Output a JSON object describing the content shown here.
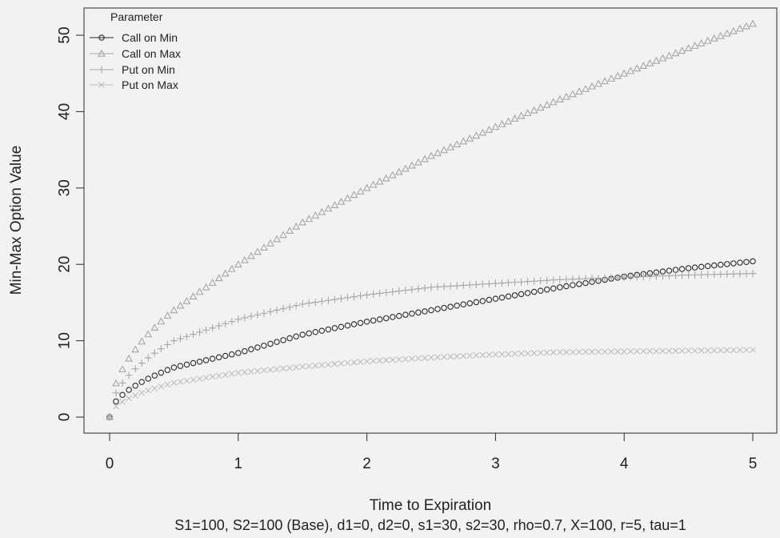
{
  "chart_data": {
    "type": "scatter",
    "xlabel": "Time to Expiration",
    "subtitle": "S1=100, S2=100 (Base), d1=0, d2=0, s1=30, s2=30, rho=0.7, X=100, r=5, tau=1",
    "ylabel": "Min-Max Option Value",
    "xlim": [
      0,
      5
    ],
    "ylim": [
      0,
      51.5
    ],
    "x_ticks": [
      0,
      1,
      2,
      3,
      4,
      5
    ],
    "y_ticks": [
      0,
      10,
      20,
      30,
      40,
      50
    ],
    "grid": false,
    "legend": {
      "title": "Parameter",
      "position": "top-left"
    },
    "colors": {
      "call_on_min": "#2b2b2b",
      "call_on_max": "#a6a6a6",
      "put_on_min": "#a6a6a6",
      "put_on_max": "#bdbdbd"
    },
    "series": [
      {
        "name": "Call on Min",
        "marker": "circle",
        "x": [
          0,
          0.5,
          1,
          1.5,
          2,
          2.5,
          3,
          3.5,
          4,
          4.5,
          5
        ],
        "values": [
          0,
          6.5,
          8.4,
          10.8,
          12.5,
          14.0,
          15.5,
          17.0,
          18.4,
          19.5,
          20.4
        ]
      },
      {
        "name": "Call on Max",
        "marker": "triangle",
        "x": [
          0,
          0.5,
          1,
          1.5,
          2,
          2.5,
          3,
          3.5,
          4,
          4.5,
          5
        ],
        "values": [
          0,
          14.0,
          20.0,
          25.5,
          30.0,
          34.2,
          38.0,
          41.6,
          45.0,
          48.3,
          51.5
        ]
      },
      {
        "name": "Put on Min",
        "marker": "plus",
        "x": [
          0,
          0.5,
          1,
          1.5,
          2,
          2.5,
          3,
          3.5,
          4,
          4.5,
          5
        ],
        "values": [
          0,
          10.0,
          12.8,
          14.8,
          16.0,
          17.0,
          17.5,
          18.0,
          18.3,
          18.6,
          18.8
        ]
      },
      {
        "name": "Put on Max",
        "marker": "cross",
        "x": [
          0,
          0.5,
          1,
          1.5,
          2,
          2.5,
          3,
          3.5,
          4,
          4.5,
          5
        ],
        "values": [
          0,
          4.5,
          5.8,
          6.6,
          7.3,
          7.8,
          8.2,
          8.5,
          8.6,
          8.7,
          8.8
        ]
      }
    ]
  }
}
